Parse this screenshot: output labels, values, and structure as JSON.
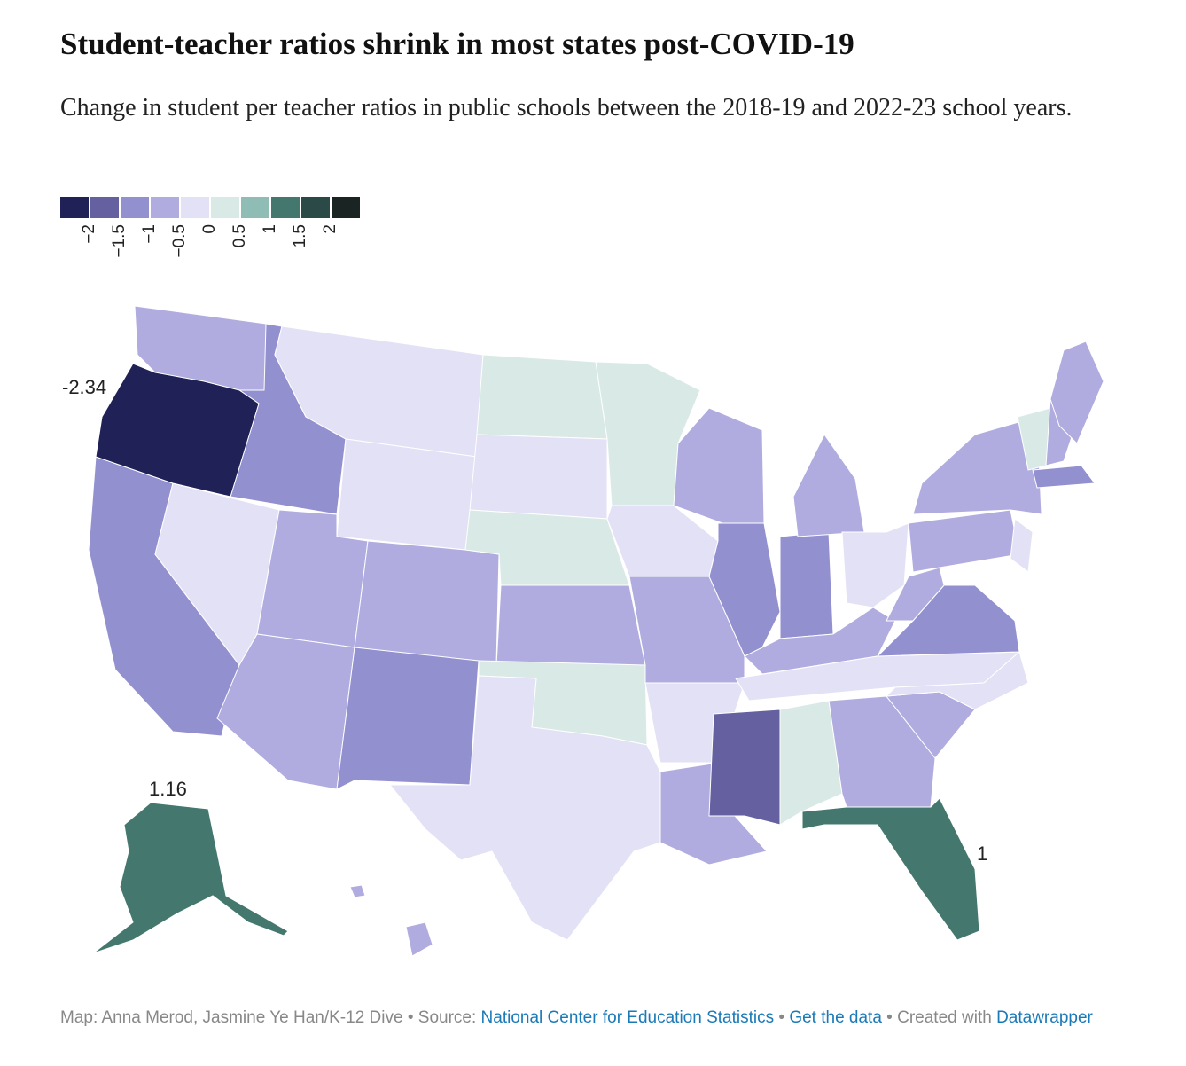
{
  "chart_data": {
    "type": "choropleth",
    "title": "Student-teacher ratios shrink in most states post-COVID-19",
    "subtitle": "Change in student per teacher ratios in public schools between the 2018-19 and 2022-23 school years.",
    "legend": {
      "colors": [
        "#1f2157",
        "#6560a0",
        "#9390d0",
        "#b0acdf",
        "#e3e1f5",
        "#d9e9e6",
        "#8fbcb4",
        "#44786e",
        "#2b4a47",
        "#1a2523"
      ],
      "ticks": [
        {
          "value": -2,
          "label": "−2"
        },
        {
          "value": -1.5,
          "label": "−1.5"
        },
        {
          "value": -1,
          "label": "−1"
        },
        {
          "value": -0.5,
          "label": "−0.5"
        },
        0,
        0.5,
        1,
        1.5,
        2
      ]
    },
    "annotations": [
      -2.34,
      1.16,
      1
    ],
    "footer": {
      "credit": "Map: Anna Merod, Jasmine Ye Han/K-12 Dive",
      "source_label": "Source:",
      "source": "National Center for Education Statistics",
      "data_link": "Get the data",
      "created": "Created with",
      "tool": "Datawrapper"
    }
  }
}
